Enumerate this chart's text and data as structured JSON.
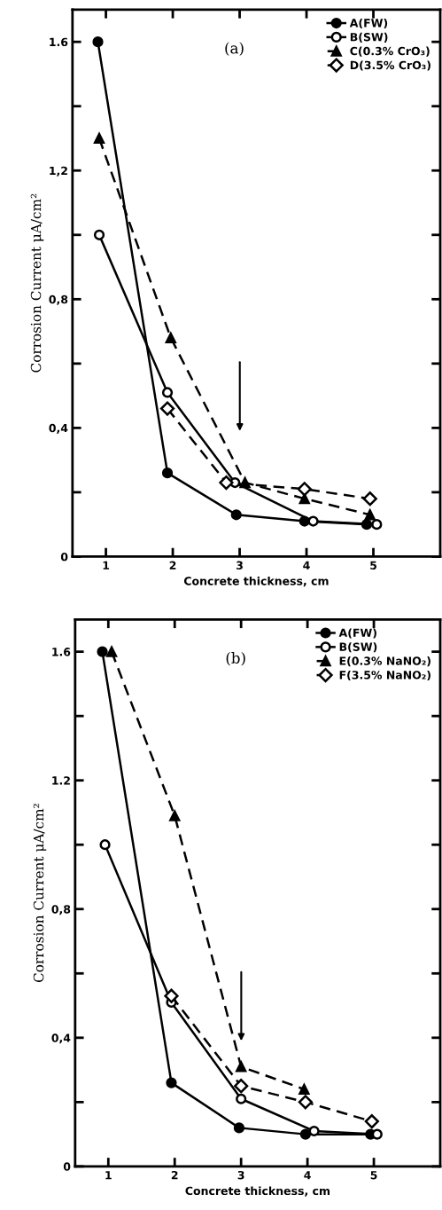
{
  "chart_data": [
    {
      "type": "line",
      "annotations": [
        "(a)"
      ],
      "xlabel": "Concrete thickness, cm",
      "ylabel": "Corrosion Current μA/cm²",
      "xlim": [
        0.5,
        6.0
      ],
      "ylim": [
        0,
        1.7
      ],
      "xticks": [
        1,
        2,
        3,
        4,
        5
      ],
      "yticks": [
        0,
        {
          "value": 0.2,
          "label": null
        },
        {
          "value": 0.4,
          "label": "0,4"
        },
        {
          "value": 0.6,
          "label": null
        },
        {
          "value": 0.8,
          "label": "0,8"
        },
        {
          "value": 1.0,
          "label": null
        },
        {
          "value": 1.2,
          "label": "1,2"
        },
        {
          "value": 1.4,
          "label": null
        },
        {
          "value": 1.6,
          "label": "1.6"
        }
      ],
      "legend": "top right",
      "grid": false,
      "series": [
        {
          "name": "A(FW)",
          "color": "#000000",
          "marker": "circle",
          "line_style": "solid",
          "x": [
            0.88,
            1.92,
            2.95,
            3.97,
            4.9
          ],
          "values": [
            1.6,
            0.26,
            0.13,
            0.11,
            0.1
          ]
        },
        {
          "name": "B(SW)",
          "color": "#000000",
          "marker": "circle_open",
          "line_style": "solid",
          "x": [
            0.9,
            1.92,
            2.93,
            4.1,
            5.05
          ],
          "values": [
            1.0,
            0.51,
            0.23,
            0.11,
            0.1
          ]
        },
        {
          "name": "C(0.3% CrO₃)",
          "color": "#000000",
          "marker": "triangle",
          "line_style": "dashed",
          "x": [
            0.9,
            1.97,
            3.08,
            3.97,
            4.95
          ],
          "values": [
            1.3,
            0.68,
            0.23,
            0.18,
            0.13
          ]
        },
        {
          "name": "D(3.5% CrO₃)",
          "color": "#000000",
          "marker": "diamond_open",
          "line_style": "dashed",
          "x": [
            1.92,
            2.8,
            3.97,
            4.95
          ],
          "values": [
            0.46,
            0.23,
            0.21,
            0.18
          ]
        }
      ]
    },
    {
      "type": "line",
      "annotations": [
        "(b)"
      ],
      "xlabel": "Concrete thickness, cm",
      "ylabel": "Corrosion Current μA/cm²",
      "xlim": [
        0.5,
        6.0
      ],
      "ylim": [
        0,
        1.7
      ],
      "xticks": [
        1,
        2,
        3,
        4,
        5
      ],
      "yticks": [
        0,
        {
          "value": 0.2,
          "label": null
        },
        {
          "value": 0.4,
          "label": "0,4"
        },
        {
          "value": 0.6,
          "label": null
        },
        {
          "value": 0.8,
          "label": "0,8"
        },
        {
          "value": 1.0,
          "label": null
        },
        {
          "value": 1.2,
          "label": "1.2"
        },
        {
          "value": 1.4,
          "label": null
        },
        {
          "value": 1.6,
          "label": "1.6"
        }
      ],
      "legend": "top right",
      "grid": false,
      "series": [
        {
          "name": "A(FW)",
          "color": "#000000",
          "marker": "circle",
          "line_style": "solid",
          "x": [
            0.91,
            1.95,
            2.97,
            3.97,
            4.95
          ],
          "values": [
            1.6,
            0.26,
            0.12,
            0.1,
            0.1
          ]
        },
        {
          "name": "B(SW)",
          "color": "#000000",
          "marker": "circle_open",
          "line_style": "solid",
          "x": [
            0.95,
            1.95,
            3.0,
            4.1,
            5.05
          ],
          "values": [
            1.0,
            0.51,
            0.21,
            0.11,
            0.1
          ]
        },
        {
          "name": "E(0.3% NaNO₂)",
          "color": "#000000",
          "marker": "triangle",
          "line_style": "dashed",
          "x": [
            1.05,
            2.0,
            3.0,
            3.95
          ],
          "values": [
            1.6,
            1.09,
            0.31,
            0.24
          ]
        },
        {
          "name": "F(3.5% NaNO₂)",
          "color": "#000000",
          "marker": "diamond_open",
          "line_style": "dashed",
          "x": [
            1.95,
            3.0,
            3.97,
            4.97
          ],
          "values": [
            0.53,
            0.25,
            0.2,
            0.14
          ]
        }
      ]
    }
  ]
}
